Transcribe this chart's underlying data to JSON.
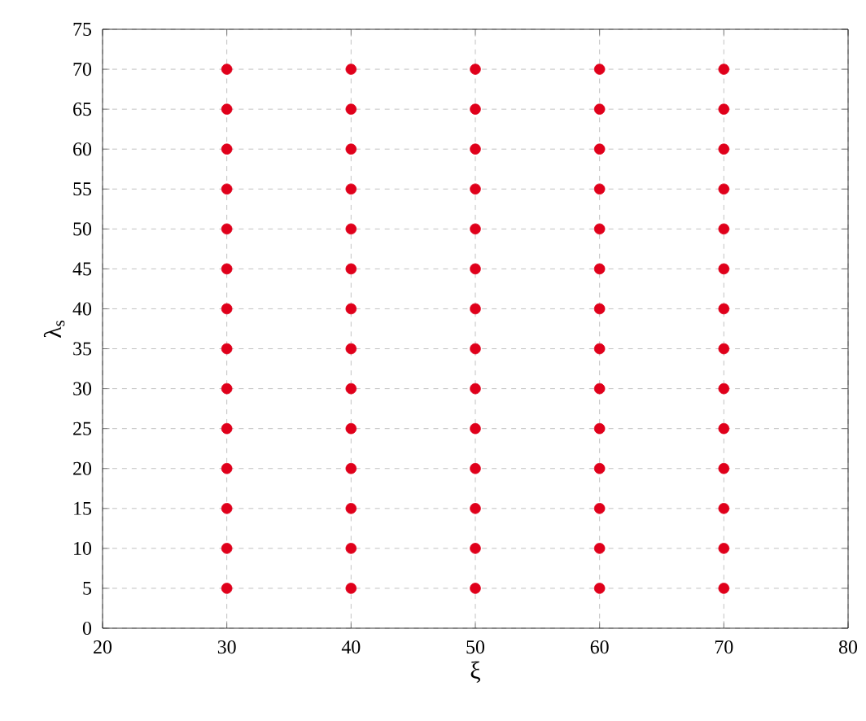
{
  "chart_data": {
    "type": "scatter",
    "xlabel": "ξ",
    "ylabel": "λ$_{s}$",
    "xlim": [
      20,
      80
    ],
    "xticks": [
      20,
      30,
      40,
      50,
      60,
      70,
      80
    ],
    "ylim": [
      0,
      75
    ],
    "yticks": [
      0,
      5,
      10,
      15,
      20,
      25,
      30,
      35,
      40,
      45,
      50,
      55,
      60,
      65,
      70,
      75
    ],
    "grid": true,
    "marker": "circle",
    "series": [
      {
        "color": "#e0001b",
        "x": [
          30,
          30,
          30,
          30,
          30,
          30,
          30,
          30,
          30,
          30,
          30,
          30,
          30,
          30,
          40,
          40,
          40,
          40,
          40,
          40,
          40,
          40,
          40,
          40,
          40,
          40,
          40,
          40,
          50,
          50,
          50,
          50,
          50,
          50,
          50,
          50,
          50,
          50,
          50,
          50,
          50,
          50,
          60,
          60,
          60,
          60,
          60,
          60,
          60,
          60,
          60,
          60,
          60,
          60,
          60,
          60,
          70,
          70,
          70,
          70,
          70,
          70,
          70,
          70,
          70,
          70,
          70,
          70,
          70,
          70
        ],
        "values": [
          5,
          10,
          15,
          20,
          25,
          30,
          35,
          40,
          45,
          50,
          55,
          60,
          65,
          70,
          5,
          10,
          15,
          20,
          25,
          30,
          35,
          40,
          45,
          50,
          55,
          60,
          65,
          70,
          5,
          10,
          15,
          20,
          25,
          30,
          35,
          40,
          45,
          50,
          55,
          60,
          65,
          70,
          5,
          10,
          15,
          20,
          25,
          30,
          35,
          40,
          45,
          50,
          55,
          60,
          65,
          70,
          5,
          10,
          15,
          20,
          25,
          30,
          35,
          40,
          45,
          50,
          55,
          60,
          65,
          70
        ]
      }
    ]
  }
}
